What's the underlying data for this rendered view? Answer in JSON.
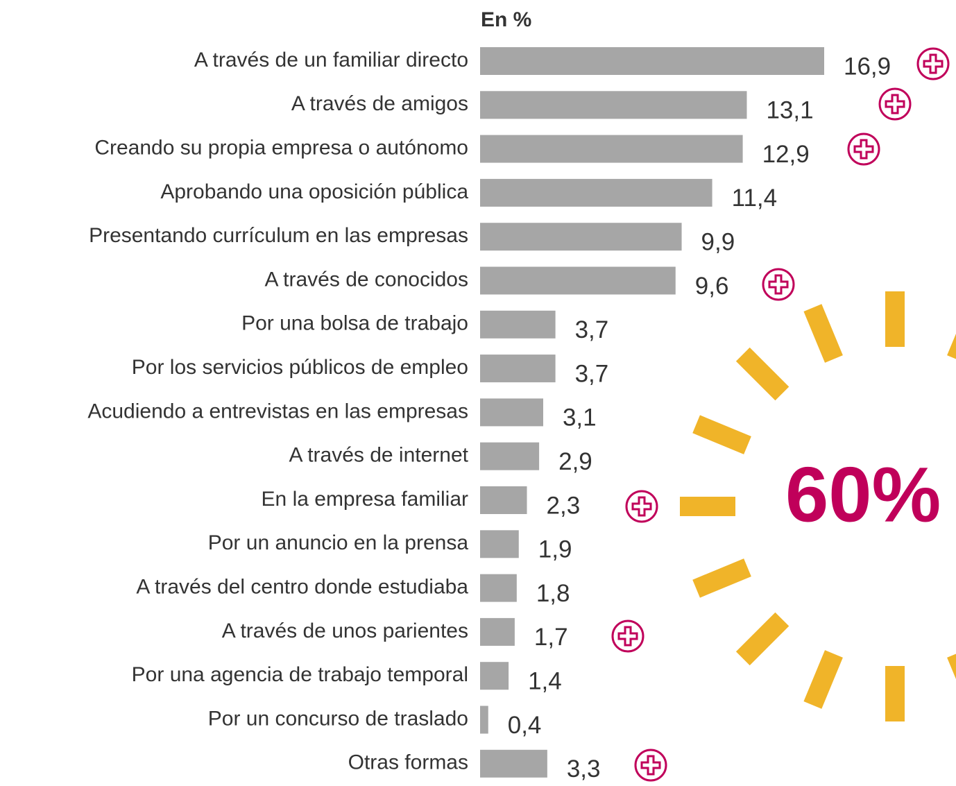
{
  "chart_data": {
    "type": "bar",
    "orientation": "horizontal",
    "subtitle": "En %",
    "categories": [
      "A través de un familiar directo",
      "A través de amigos",
      "Creando su propia empresa o autónomo",
      "Aprobando una oposición pública",
      "Presentando currículum en las empresas",
      "A través de conocidos",
      "Por una bolsa de trabajo",
      "Por los servicios públicos de empleo",
      "Acudiendo a entrevistas en las empresas",
      "A través de internet",
      "En la empresa familiar",
      "Por un anuncio en la prensa",
      "A través del centro donde estudiaba",
      "A través de unos parientes",
      "Por una agencia de trabajo temporal",
      "Por un concurso de traslado",
      "Otras formas"
    ],
    "values": [
      16.9,
      13.1,
      12.9,
      11.4,
      9.9,
      9.6,
      3.7,
      3.7,
      3.1,
      2.9,
      2.3,
      1.9,
      1.8,
      1.7,
      1.4,
      0.4,
      3.3
    ],
    "value_labels": [
      "16,9",
      "13,1",
      "12,9",
      "11,4",
      "9,9",
      "9,6",
      "3,7",
      "3,7",
      "3,1",
      "2,9",
      "2,3",
      "1,9",
      "1,8",
      "1,7",
      "1,4",
      "0,4",
      "3,3"
    ],
    "color": "#a6a6a6",
    "annotation": "60%"
  }
}
